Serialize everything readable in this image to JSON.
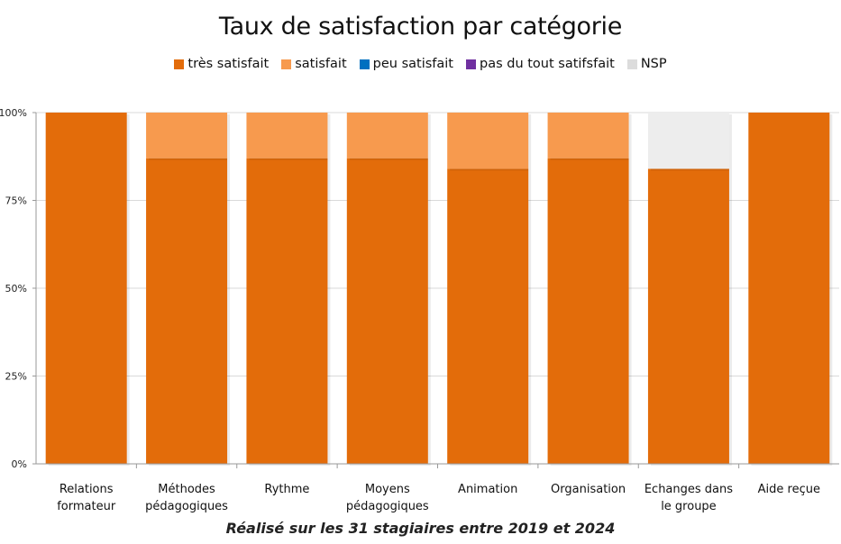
{
  "colors": {
    "tres_satisfait": "#E36C0A",
    "satisfait": "#F79A4E",
    "peu_satisfait": "#0070C0",
    "pas_du_tout": "#7030A0",
    "nsp": "#EDEDED"
  },
  "footnote": "Réalisé sur les 31 stagiaires entre 2019 et 2024",
  "chart_data": {
    "type": "bar",
    "stacked": true,
    "title": "Taux de satisfaction par catégorie",
    "xlabel": "",
    "ylabel": "",
    "ylim": [
      0,
      100
    ],
    "y_ticks": [
      "0%",
      "25%",
      "50%",
      "75%",
      "100%"
    ],
    "categories": [
      [
        "Relations",
        "formateur"
      ],
      [
        "Méthodes",
        "pédagogiques"
      ],
      [
        "Rythme"
      ],
      [
        "Moyens",
        "pédagogiques"
      ],
      [
        "Animation"
      ],
      [
        "Organisation"
      ],
      [
        "Echanges dans",
        "le groupe"
      ],
      [
        "Aide reçue"
      ]
    ],
    "legend_position": "top",
    "series": [
      {
        "name": "très satisfait",
        "color": "#E36C0A",
        "values": [
          100,
          87,
          87,
          87,
          84,
          87,
          84,
          100
        ]
      },
      {
        "name": "satisfait",
        "color": "#F79A4E",
        "values": [
          0,
          13,
          13,
          13,
          16,
          13,
          0,
          0
        ]
      },
      {
        "name": "peu satisfait",
        "color": "#0070C0",
        "values": [
          0,
          0,
          0,
          0,
          0,
          0,
          0,
          0
        ]
      },
      {
        "name": "pas du tout satifsfait",
        "color": "#7030A0",
        "values": [
          0,
          0,
          0,
          0,
          0,
          0,
          0,
          0
        ]
      },
      {
        "name": "NSP",
        "color": "#EDEDED",
        "values": [
          0,
          0,
          0,
          0,
          0,
          0,
          16,
          0
        ]
      }
    ]
  }
}
